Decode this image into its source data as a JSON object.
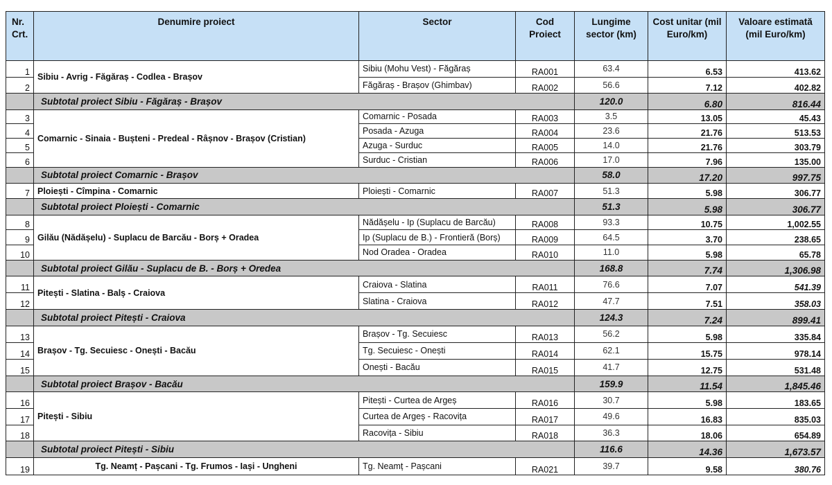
{
  "header": {
    "nr": "Nr. Crt.",
    "project": "Denumire proiect",
    "sector": "Sector",
    "code": "Cod Proiect",
    "length": "Lungime sector (km)",
    "cost": "Cost unitar (mil Euro/km)",
    "value": "Valoare estimată (mil Euro/km)"
  },
  "projects": [
    {
      "name": "Sibiu - Avrig - Făgăraș - Codlea - Brașov",
      "rows": [
        {
          "nr": "1",
          "sector": "Sibiu (Mohu Vest) - Făgăraș",
          "code": "RA001",
          "length": "63.4",
          "cost": "6.53",
          "value": "413.62"
        },
        {
          "nr": "2",
          "sector": "Făgăraș - Brașov (Ghimbav)",
          "code": "RA002",
          "length": "56.6",
          "cost": "7.12",
          "value": "402.82"
        }
      ],
      "subtotal": {
        "label": "Subtotal proiect Sibiu - Făgăraș - Brașov",
        "length": "120.0",
        "cost": "6.80",
        "value": "816.44"
      }
    },
    {
      "name": "Comarnic - Sinaia - Bușteni - Predeal - Râșnov - Brașov (Cristian)",
      "rows": [
        {
          "nr": "3",
          "sector": "Comarnic - Posada",
          "code": "RA003",
          "length": "3.5",
          "cost": "13.05",
          "value": "45.43"
        },
        {
          "nr": "4",
          "sector": "Posada - Azuga",
          "code": "RA004",
          "length": "23.6",
          "cost": "21.76",
          "value": "513.53"
        },
        {
          "nr": "5",
          "sector": "Azuga - Surduc",
          "code": "RA005",
          "length": "14.0",
          "cost": "21.76",
          "value": "303.79"
        },
        {
          "nr": "6",
          "sector": "Surduc - Cristian",
          "code": "RA006",
          "length": "17.0",
          "cost": "7.96",
          "value": "135.00"
        }
      ],
      "subtotal": {
        "label": "Subtotal proiect Comarnic - Brașov",
        "length": "58.0",
        "cost": "17.20",
        "value": "997.75"
      }
    },
    {
      "name": "Ploiești - Cîmpina - Comarnic",
      "rows": [
        {
          "nr": "7",
          "sector": "Ploiești - Comarnic",
          "code": "RA007",
          "length": "51.3",
          "cost": "5.98",
          "value": "306.77"
        }
      ],
      "subtotal": {
        "label": "Subtotal proiect Ploiești - Comarnic",
        "length": "51.3",
        "cost": "5.98",
        "value": "306.77"
      }
    },
    {
      "name": "Gilău (Nădășelu) - Suplacu de Barcău - Borș + Oradea",
      "rows": [
        {
          "nr": "8",
          "sector": "Nădășelu - Ip (Suplacu de Barcău)",
          "code": "RA008",
          "length": "93.3",
          "cost": "10.75",
          "value": "1,002.55"
        },
        {
          "nr": "9",
          "sector": "Ip (Suplacu de B.) - Frontieră (Borș)",
          "code": "RA009",
          "length": "64.5",
          "cost": "3.70",
          "value": "238.65"
        },
        {
          "nr": "10",
          "sector": "Nod Oradea - Oradea",
          "code": "RA010",
          "length": "11.0",
          "cost": "5.98",
          "value": "65.78"
        }
      ],
      "subtotal": {
        "label": "Subtotal proiect Gilău - Suplacu de B. - Borș + Oredea",
        "length": "168.8",
        "cost": "7.74",
        "value": "1,306.98"
      }
    },
    {
      "name": "Pitești - Slatina - Balș - Craiova",
      "rows": [
        {
          "nr": "11",
          "sector": "Craiova - Slatina",
          "code": "RA011",
          "length": "76.6",
          "cost": "7.07",
          "value": "541.39"
        },
        {
          "nr": "12",
          "sector": "Slatina - Craiova",
          "code": "RA012",
          "length": "47.7",
          "cost": "7.51",
          "value": "358.03"
        }
      ],
      "subtotal": {
        "label": "Subtotal proiect Pitești - Craiova",
        "length": "124.3",
        "cost": "7.24",
        "value": "899.41"
      }
    },
    {
      "name": "Brașov - Tg. Secuiesc - Onești - Bacău",
      "rows": [
        {
          "nr": "13",
          "sector": "Brașov - Tg. Secuiesc",
          "code": "RA013",
          "length": "56.2",
          "cost": "5.98",
          "value": "335.84"
        },
        {
          "nr": "14",
          "sector": "Tg. Secuiesc - Onești",
          "code": "RA014",
          "length": "62.1",
          "cost": "15.75",
          "value": "978.14"
        },
        {
          "nr": "15",
          "sector": "Onești - Bacău",
          "code": "RA015",
          "length": "41.7",
          "cost": "12.75",
          "value": "531.48"
        }
      ],
      "subtotal": {
        "label": "Subtotal proiect Brașov - Bacău",
        "length": "159.9",
        "cost": "11.54",
        "value": "1,845.46"
      }
    },
    {
      "name": "Pitești - Sibiu",
      "rows": [
        {
          "nr": "16",
          "sector": "Pitești - Curtea de Argeș",
          "code": "RA016",
          "length": "30.7",
          "cost": "5.98",
          "value": "183.65"
        },
        {
          "nr": "17",
          "sector": "Curtea de Argeș - Racovița",
          "code": "RA017",
          "length": "49.6",
          "cost": "16.83",
          "value": "835.03"
        },
        {
          "nr": "18",
          "sector": "Racovița - Sibiu",
          "code": "RA018",
          "length": "36.3",
          "cost": "18.06",
          "value": "654.89"
        }
      ],
      "subtotal": {
        "label": "Subtotal proiect  Pitești - Sibiu",
        "length": "116.6",
        "cost": "14.36",
        "value": "1,673.57"
      }
    },
    {
      "name": "Tg. Neamț - Pașcani - Tg. Frumos - Iași - Ungheni",
      "rows": [
        {
          "nr": "19",
          "sector": "Tg. Neamț - Pașcani",
          "code": "RA021",
          "length": "39.7",
          "cost": "9.58",
          "value": "380.76"
        }
      ]
    }
  ]
}
